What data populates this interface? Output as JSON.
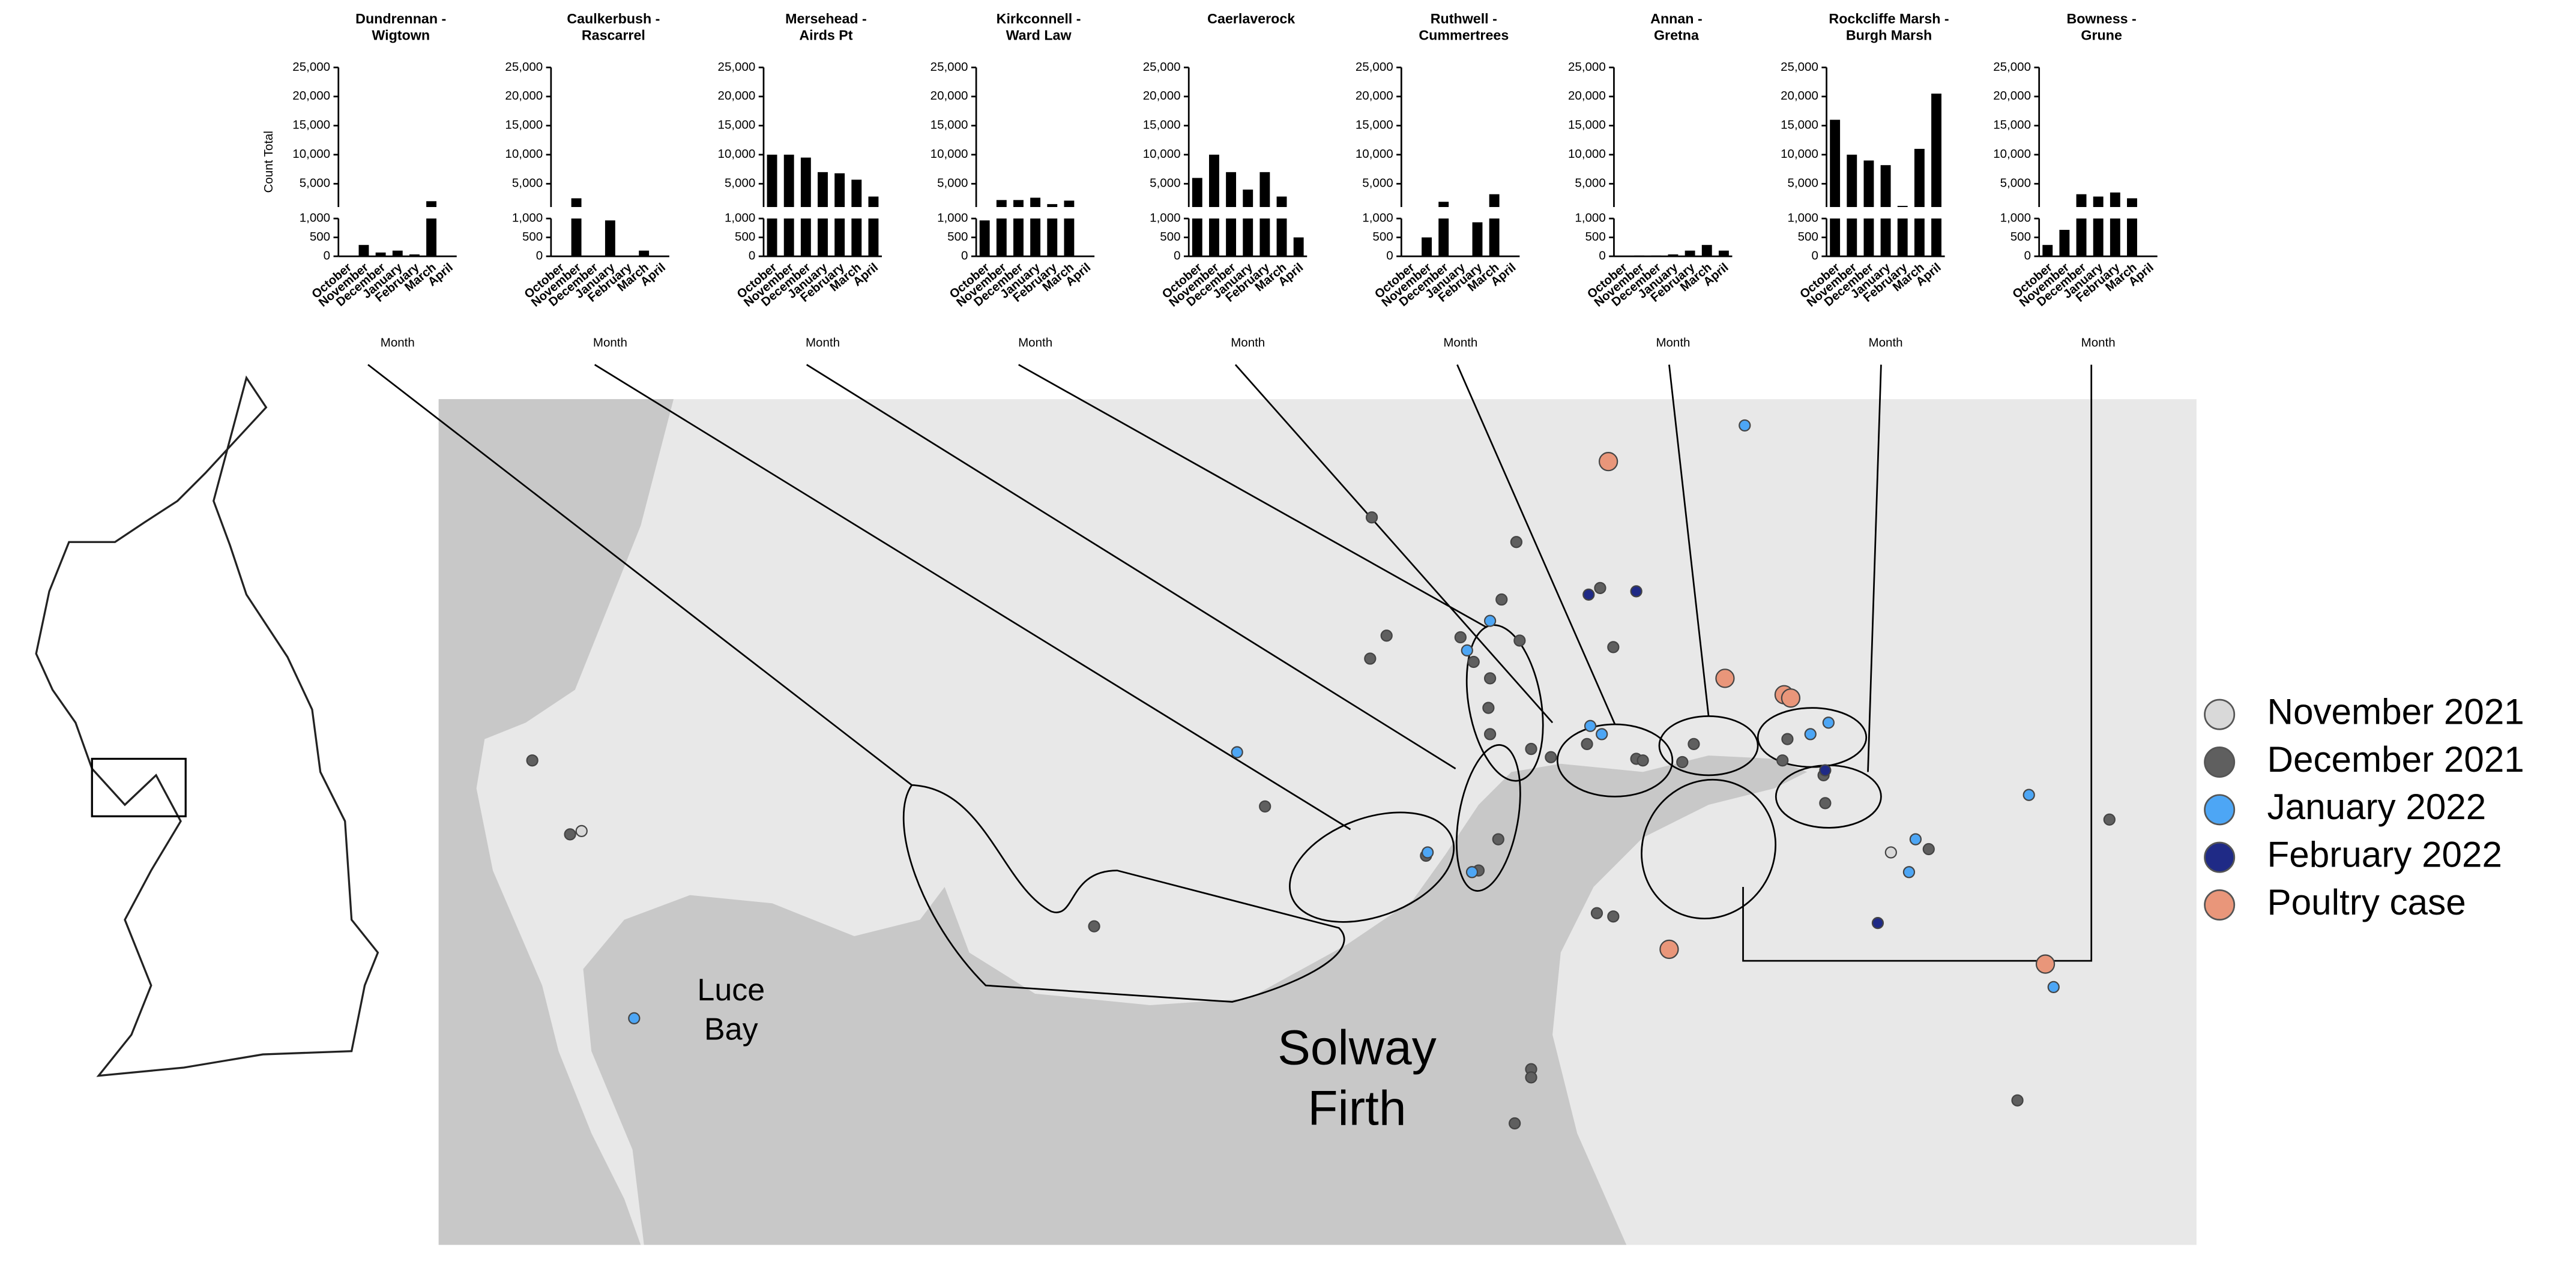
{
  "chart_data": [
    {
      "type": "bar",
      "title": [
        "Dundrennan -",
        "Wigtown"
      ],
      "ylabel": "Count Total",
      "xlabel": "Month",
      "categories": [
        "October",
        "November",
        "December",
        "January",
        "February",
        "March",
        "April"
      ],
      "values": [
        0,
        300,
        100,
        150,
        50,
        2000,
        0
      ],
      "color": "#000000",
      "ylim": [
        0,
        25000
      ],
      "ybreak": 1000,
      "yticks": [
        0,
        500,
        {
          "value": 1000,
          "label": "1,000"
        },
        {
          "value": 5000,
          "label": "5,000"
        },
        {
          "value": 10000,
          "label": "10,000"
        },
        {
          "value": 15000,
          "label": "15,000"
        },
        {
          "value": 20000,
          "label": "20,000"
        },
        {
          "value": 25000,
          "label": "25,000"
        }
      ]
    },
    {
      "type": "bar",
      "title": [
        "Caulkerbush -",
        "Rascarrel"
      ],
      "xlabel": "Month",
      "categories": [
        "October",
        "November",
        "December",
        "January",
        "February",
        "March",
        "April"
      ],
      "values": [
        0,
        2500,
        0,
        950,
        0,
        150,
        0
      ],
      "color": "#000000",
      "ylim": [
        0,
        25000
      ],
      "ybreak": 1000,
      "yticks": [
        0,
        500,
        {
          "value": 1000,
          "label": "1,000"
        },
        {
          "value": 5000,
          "label": "5,000"
        },
        {
          "value": 10000,
          "label": "10,000"
        },
        {
          "value": 15000,
          "label": "15,000"
        },
        {
          "value": 20000,
          "label": "20,000"
        },
        {
          "value": 25000,
          "label": "25,000"
        }
      ]
    },
    {
      "type": "bar",
      "title": [
        "Mersehead -",
        "Airds Pt"
      ],
      "xlabel": "Month",
      "categories": [
        "October",
        "November",
        "December",
        "January",
        "February",
        "March",
        "April"
      ],
      "values": [
        10000,
        10000,
        9500,
        7000,
        6800,
        5700,
        2800
      ],
      "color": "#000000",
      "ylim": [
        0,
        25000
      ],
      "ybreak": 1000,
      "yticks": [
        0,
        500,
        {
          "value": 1000,
          "label": "1,000"
        },
        {
          "value": 5000,
          "label": "5,000"
        },
        {
          "value": 10000,
          "label": "10,000"
        },
        {
          "value": 15000,
          "label": "15,000"
        },
        {
          "value": 20000,
          "label": "20,000"
        },
        {
          "value": 25000,
          "label": "25,000"
        }
      ]
    },
    {
      "type": "bar",
      "title": [
        "Kirkconnell -",
        "Ward Law"
      ],
      "xlabel": "Month",
      "categories": [
        "October",
        "November",
        "December",
        "January",
        "February",
        "March",
        "April"
      ],
      "values": [
        950,
        2200,
        2200,
        2600,
        1500,
        2100,
        0
      ],
      "color": "#000000",
      "ylim": [
        0,
        25000
      ],
      "ybreak": 1000,
      "yticks": [
        0,
        500,
        {
          "value": 1000,
          "label": "1,000"
        },
        {
          "value": 5000,
          "label": "5,000"
        },
        {
          "value": 10000,
          "label": "10,000"
        },
        {
          "value": 15000,
          "label": "15,000"
        },
        {
          "value": 20000,
          "label": "20,000"
        },
        {
          "value": 25000,
          "label": "25,000"
        }
      ]
    },
    {
      "type": "bar",
      "title": [
        "Caerlaverock"
      ],
      "xlabel": "Month",
      "categories": [
        "October",
        "November",
        "December",
        "January",
        "February",
        "March",
        "April"
      ],
      "values": [
        6000,
        10000,
        7000,
        4000,
        7000,
        2800,
        500
      ],
      "color": "#000000",
      "ylim": [
        0,
        25000
      ],
      "ybreak": 1000,
      "yticks": [
        0,
        500,
        {
          "value": 1000,
          "label": "1,000"
        },
        {
          "value": 5000,
          "label": "5,000"
        },
        {
          "value": 10000,
          "label": "10,000"
        },
        {
          "value": 15000,
          "label": "15,000"
        },
        {
          "value": 20000,
          "label": "20,000"
        },
        {
          "value": 25000,
          "label": "25,000"
        }
      ]
    },
    {
      "type": "bar",
      "title": [
        "Ruthwell -",
        "Cummertrees"
      ],
      "xlabel": "Month",
      "categories": [
        "October",
        "November",
        "December",
        "January",
        "February",
        "March",
        "April"
      ],
      "values": [
        0,
        500,
        1900,
        0,
        900,
        3200,
        0
      ],
      "color": "#000000",
      "ylim": [
        0,
        25000
      ],
      "ybreak": 1000,
      "yticks": [
        0,
        500,
        {
          "value": 1000,
          "label": "1,000"
        },
        {
          "value": 5000,
          "label": "5,000"
        },
        {
          "value": 10000,
          "label": "10,000"
        },
        {
          "value": 15000,
          "label": "15,000"
        },
        {
          "value": 20000,
          "label": "20,000"
        },
        {
          "value": 25000,
          "label": "25,000"
        }
      ]
    },
    {
      "type": "bar",
      "title": [
        "Annan -",
        "Gretna"
      ],
      "xlabel": "Month",
      "categories": [
        "October",
        "November",
        "December",
        "January",
        "February",
        "March",
        "April"
      ],
      "values": [
        0,
        20,
        20,
        50,
        150,
        300,
        150
      ],
      "color": "#000000",
      "ylim": [
        0,
        25000
      ],
      "ybreak": 1000,
      "yticks": [
        0,
        500,
        {
          "value": 1000,
          "label": "1,000"
        },
        {
          "value": 5000,
          "label": "5,000"
        },
        {
          "value": 10000,
          "label": "10,000"
        },
        {
          "value": 15000,
          "label": "15,000"
        },
        {
          "value": 20000,
          "label": "20,000"
        },
        {
          "value": 25000,
          "label": "25,000"
        }
      ]
    },
    {
      "type": "bar",
      "title": [
        "Rockcliffe Marsh -",
        "Burgh Marsh"
      ],
      "xlabel": "Month",
      "categories": [
        "October",
        "November",
        "December",
        "January",
        "February",
        "March",
        "April"
      ],
      "values": [
        16000,
        10000,
        9000,
        8200,
        1200,
        11000,
        20500
      ],
      "color": "#000000",
      "ylim": [
        0,
        25000
      ],
      "ybreak": 1000,
      "yticks": [
        0,
        500,
        {
          "value": 1000,
          "label": "1,000"
        },
        {
          "value": 5000,
          "label": "5,000"
        },
        {
          "value": 10000,
          "label": "10,000"
        },
        {
          "value": 15000,
          "label": "15,000"
        },
        {
          "value": 20000,
          "label": "20,000"
        },
        {
          "value": 25000,
          "label": "25,000"
        }
      ]
    },
    {
      "type": "bar",
      "title": [
        "Bowness -",
        "Grune"
      ],
      "xlabel": "Month",
      "categories": [
        "October",
        "November",
        "December",
        "January",
        "February",
        "March",
        "April"
      ],
      "values": [
        300,
        700,
        3200,
        2800,
        3500,
        2500,
        0
      ],
      "color": "#000000",
      "ylim": [
        0,
        25000
      ],
      "ybreak": 1000,
      "yticks": [
        0,
        500,
        {
          "value": 1000,
          "label": "1,000"
        },
        {
          "value": 5000,
          "label": "5,000"
        },
        {
          "value": 10000,
          "label": "10,000"
        },
        {
          "value": 15000,
          "label": "15,000"
        },
        {
          "value": 20000,
          "label": "20,000"
        },
        {
          "value": 25000,
          "label": "25,000"
        }
      ]
    }
  ],
  "map": {
    "labels": [
      [
        "Luce",
        "Bay"
      ],
      [
        "Solway",
        "Firth"
      ]
    ],
    "legend": [
      {
        "name": "November 2021",
        "color": "#d9d9d9"
      },
      {
        "name": "December 2021",
        "color": "#5f5f5f"
      },
      {
        "name": "January 2022",
        "color": "#4da6f5"
      },
      {
        "name": "February 2022",
        "color": "#1f2a86"
      },
      {
        "name": "Poultry case",
        "color": "#e9967a"
      }
    ]
  }
}
